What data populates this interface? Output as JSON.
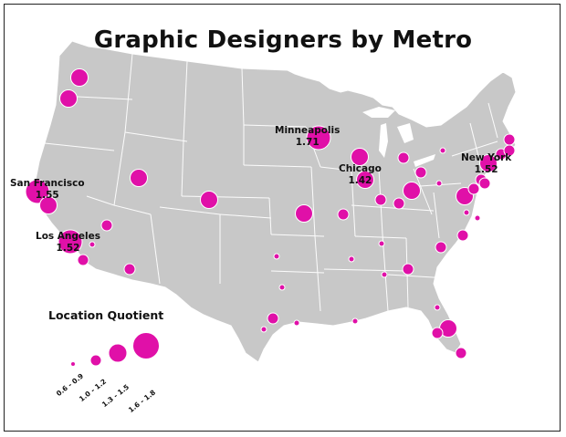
{
  "title": "Graphic Designers by Metro",
  "colors": {
    "land": "#c8c8c8",
    "state_border": "#ffffff",
    "bubble": "#e010a8",
    "bubble_stroke": "#ffffff",
    "text": "#111111"
  },
  "labeled_cities": [
    {
      "name": "Minneapolis",
      "value": "1.71"
    },
    {
      "name": "Chicago",
      "value": "1.42"
    },
    {
      "name": "New York",
      "value": "1.52"
    },
    {
      "name": "San Francisco",
      "value": "1.55"
    },
    {
      "name": "Los Angeles",
      "value": "1.52"
    }
  ],
  "legend": {
    "title": "Location Quotient",
    "ranges": [
      "0.6 - 0.9",
      "1.0 - 1.2",
      "1.3 - 1.5",
      "1.6 - 1.8"
    ]
  }
}
